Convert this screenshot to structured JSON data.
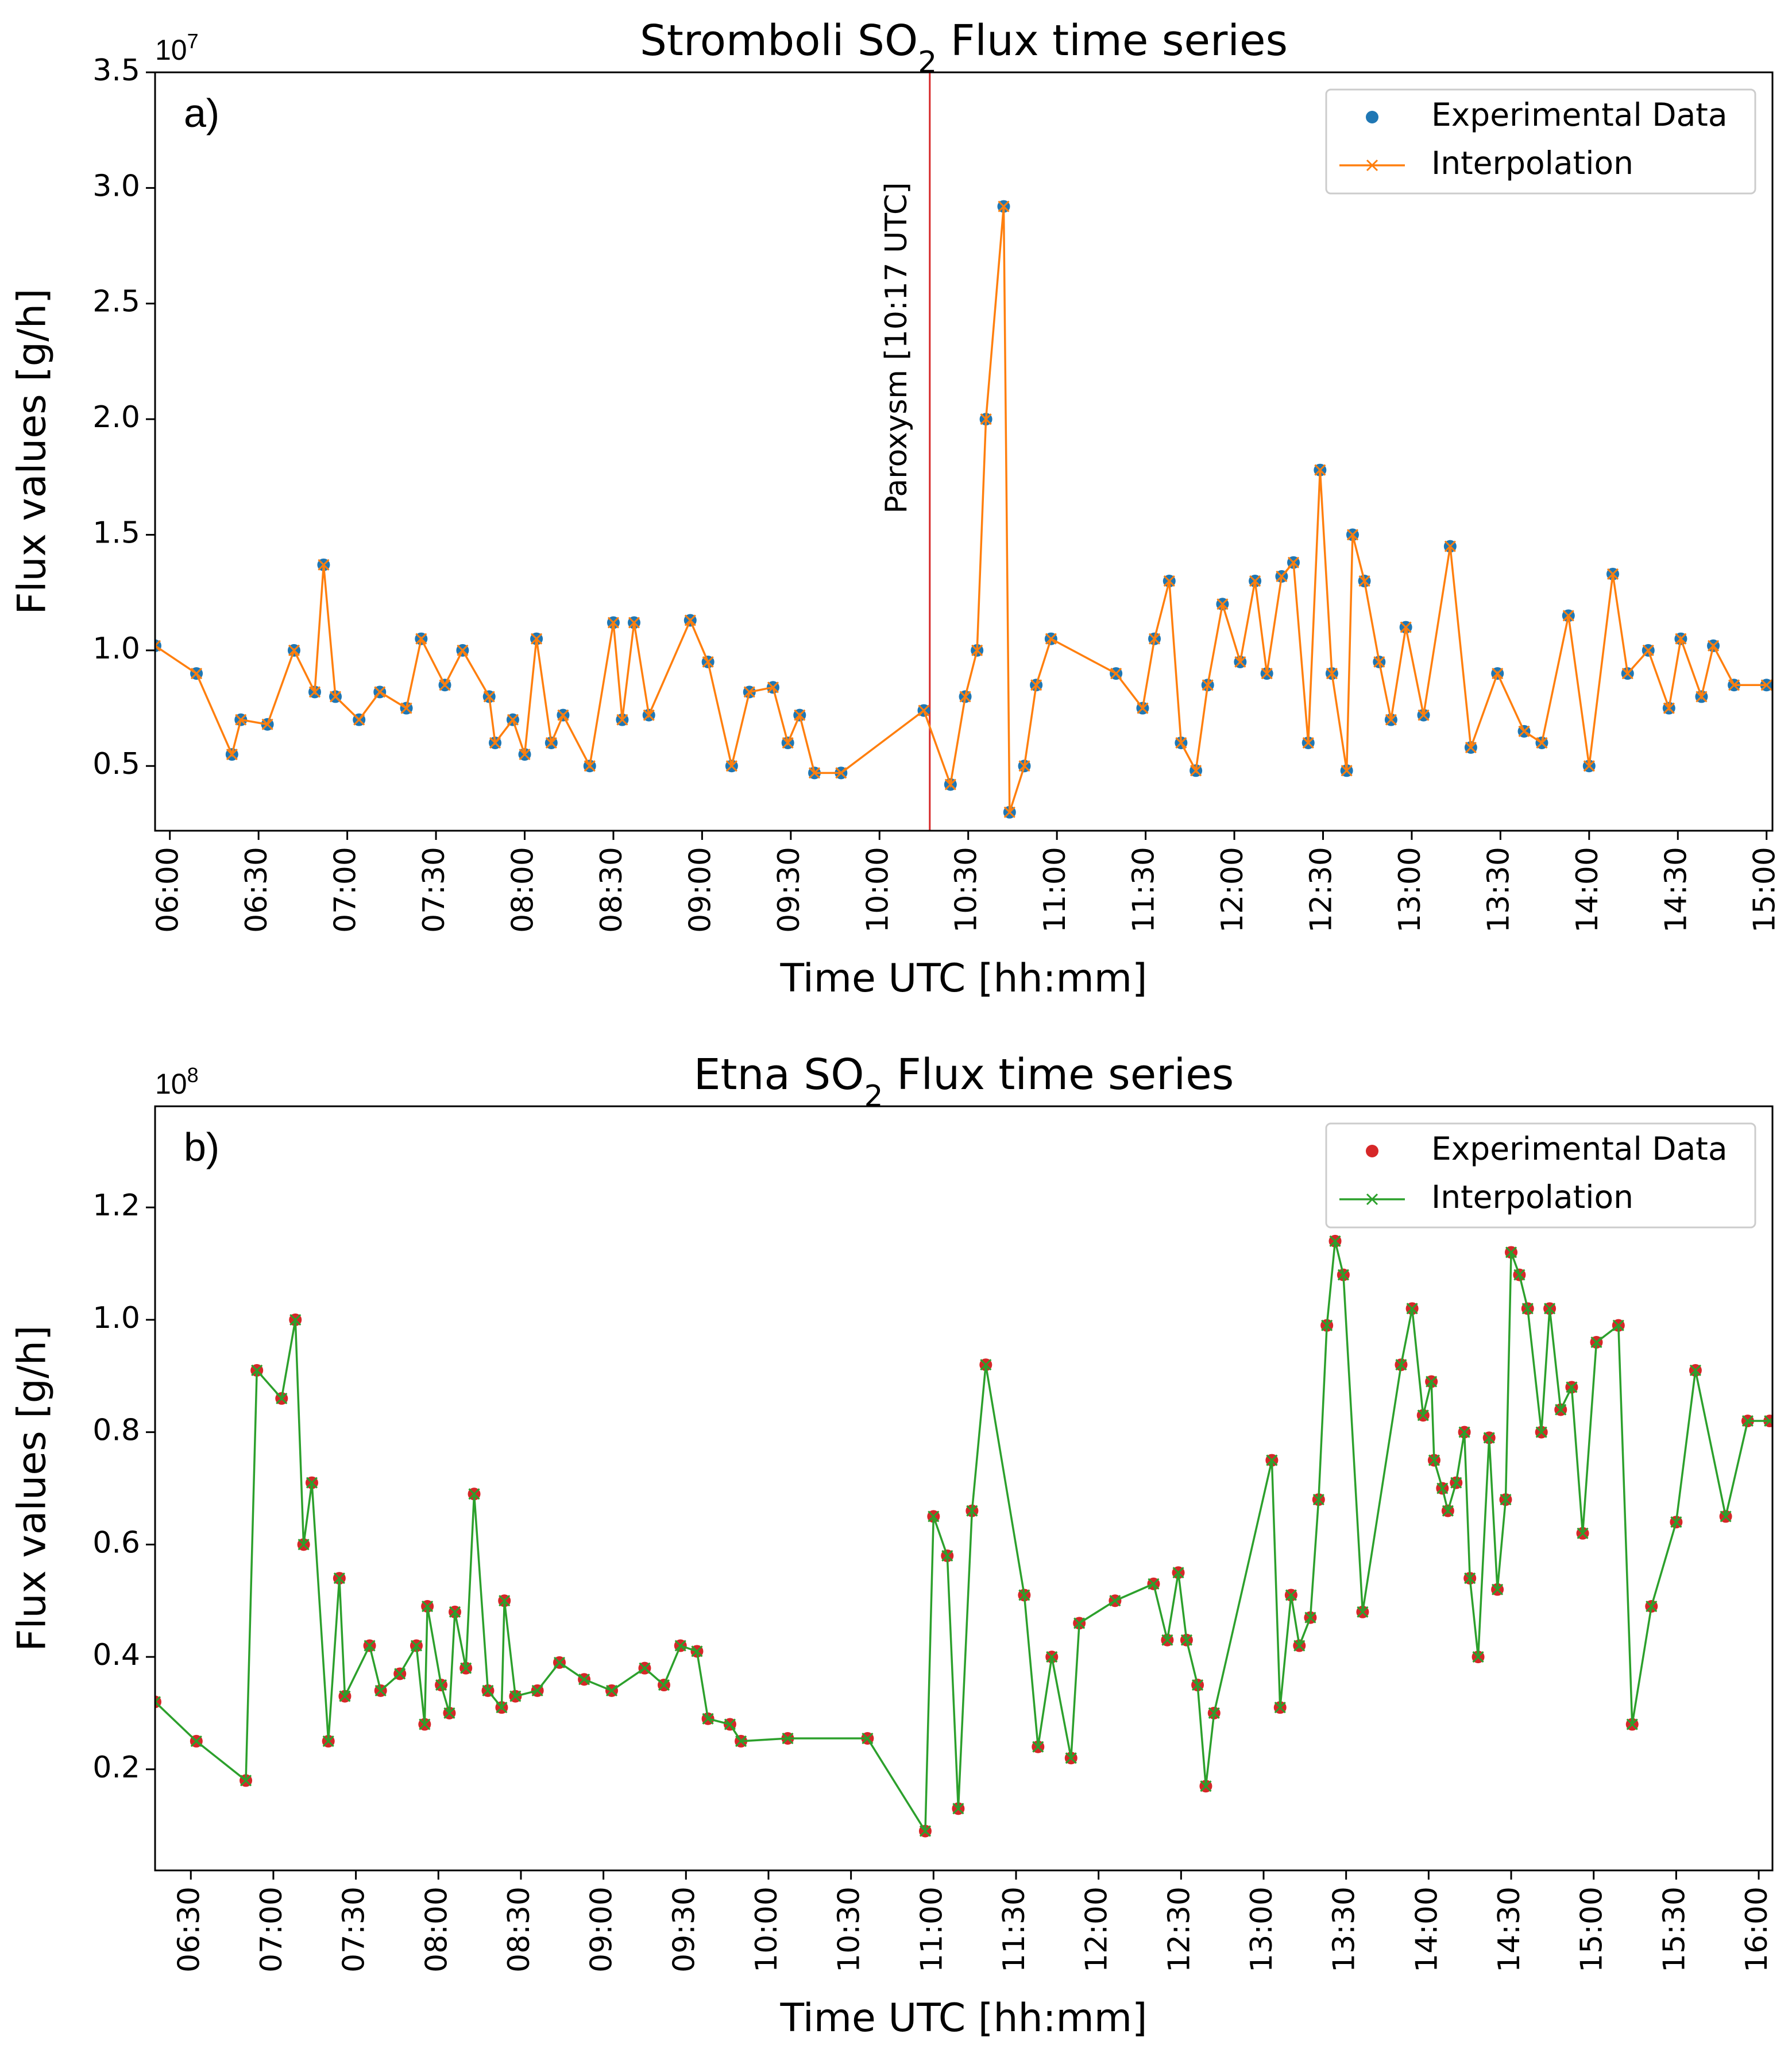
{
  "chart_data": [
    {
      "type": "line",
      "title": {
        "text": "Stromboli SO",
        "sub": "2",
        "rest": " Flux time series"
      },
      "panel_label": "a)",
      "offset_text": {
        "base": "10",
        "exp": "7"
      },
      "xlabel": "Time UTC [hh:mm]",
      "ylabel": "Flux values [g/h]",
      "xlim": [
        355,
        902
      ],
      "ylim": [
        0.22,
        3.5
      ],
      "xticks": [
        {
          "value": 360,
          "label": "06:00"
        },
        {
          "value": 390,
          "label": "06:30"
        },
        {
          "value": 420,
          "label": "07:00"
        },
        {
          "value": 450,
          "label": "07:30"
        },
        {
          "value": 480,
          "label": "08:00"
        },
        {
          "value": 510,
          "label": "08:30"
        },
        {
          "value": 540,
          "label": "09:00"
        },
        {
          "value": 570,
          "label": "09:30"
        },
        {
          "value": 600,
          "label": "10:00"
        },
        {
          "value": 630,
          "label": "10:30"
        },
        {
          "value": 660,
          "label": "11:00"
        },
        {
          "value": 690,
          "label": "11:30"
        },
        {
          "value": 720,
          "label": "12:00"
        },
        {
          "value": 750,
          "label": "12:30"
        },
        {
          "value": 780,
          "label": "13:00"
        },
        {
          "value": 810,
          "label": "13:30"
        },
        {
          "value": 840,
          "label": "14:00"
        },
        {
          "value": 870,
          "label": "14:30"
        },
        {
          "value": 900,
          "label": "15:00"
        }
      ],
      "yticks": [
        0.5,
        {
          "value": 1,
          "label": "1.0"
        },
        1.5,
        {
          "value": 2,
          "label": "2.0"
        },
        2.5,
        {
          "value": 3,
          "label": "3.0"
        },
        3.5
      ],
      "legend": "upper right",
      "vline": {
        "x": 617,
        "color": "#d62728",
        "label": "Paroxysm [10:17 UTC]"
      },
      "series": [
        {
          "name": "Experimental Data",
          "color": "#1f77b4",
          "marker": "o",
          "x": [
            355,
            369,
            381,
            384,
            393,
            402,
            409,
            412,
            416,
            424,
            431,
            440,
            445,
            453,
            459,
            468,
            470,
            476,
            480,
            484,
            489,
            493,
            502,
            510,
            513,
            517,
            522,
            536,
            542,
            550,
            556,
            564,
            569,
            573,
            578,
            587,
            615,
            624,
            629,
            633,
            636,
            642,
            644,
            649,
            653,
            658,
            680,
            689,
            693,
            698,
            702,
            707,
            711,
            716,
            722,
            727,
            731,
            736,
            740,
            745,
            749,
            753,
            758,
            760,
            764,
            769,
            773,
            778,
            784,
            793,
            800,
            809,
            818,
            824,
            833,
            840,
            848,
            853,
            860,
            867,
            871,
            878,
            882,
            889,
            900
          ],
          "values": [
            1.02,
            0.9,
            0.55,
            0.7,
            0.68,
            1.0,
            0.82,
            1.37,
            0.8,
            0.7,
            0.82,
            0.75,
            1.05,
            0.85,
            1.0,
            0.8,
            0.6,
            0.7,
            0.55,
            1.05,
            0.6,
            0.72,
            0.5,
            1.12,
            0.7,
            1.12,
            0.72,
            1.13,
            0.95,
            0.5,
            0.82,
            0.84,
            0.6,
            0.72,
            0.47,
            0.47,
            0.74,
            0.42,
            0.8,
            1.0,
            2.0,
            2.92,
            0.3,
            0.5,
            0.85,
            1.05,
            0.9,
            0.75,
            1.05,
            1.3,
            0.6,
            0.48,
            0.85,
            1.2,
            0.95,
            1.3,
            0.9,
            1.32,
            1.38,
            0.6,
            1.78,
            0.9,
            0.48,
            1.5,
            1.3,
            0.95,
            0.7,
            1.1,
            0.72,
            1.45,
            0.58,
            0.9,
            0.65,
            0.6,
            1.15,
            0.5,
            1.33,
            0.9,
            1.0,
            0.75,
            1.05,
            0.8,
            1.02,
            0.85,
            0.85
          ]
        },
        {
          "name": "Interpolation",
          "color": "#ff7f0e",
          "marker": "x",
          "line": true,
          "x": [
            355,
            369,
            381,
            384,
            393,
            402,
            409,
            412,
            416,
            424,
            431,
            440,
            445,
            453,
            459,
            468,
            470,
            476,
            480,
            484,
            489,
            493,
            502,
            510,
            513,
            517,
            522,
            536,
            542,
            550,
            556,
            564,
            569,
            573,
            578,
            587,
            615,
            624,
            629,
            633,
            636,
            642,
            644,
            649,
            653,
            658,
            680,
            689,
            693,
            698,
            702,
            707,
            711,
            716,
            722,
            727,
            731,
            736,
            740,
            745,
            749,
            753,
            758,
            760,
            764,
            769,
            773,
            778,
            784,
            793,
            800,
            809,
            818,
            824,
            833,
            840,
            848,
            853,
            860,
            867,
            871,
            878,
            882,
            889,
            900
          ],
          "values": [
            1.02,
            0.9,
            0.55,
            0.7,
            0.68,
            1.0,
            0.82,
            1.37,
            0.8,
            0.7,
            0.82,
            0.75,
            1.05,
            0.85,
            1.0,
            0.8,
            0.6,
            0.7,
            0.55,
            1.05,
            0.6,
            0.72,
            0.5,
            1.12,
            0.7,
            1.12,
            0.72,
            1.13,
            0.95,
            0.5,
            0.82,
            0.84,
            0.6,
            0.72,
            0.47,
            0.47,
            0.74,
            0.42,
            0.8,
            1.0,
            2.0,
            2.92,
            0.3,
            0.5,
            0.85,
            1.05,
            0.9,
            0.75,
            1.05,
            1.3,
            0.6,
            0.48,
            0.85,
            1.2,
            0.95,
            1.3,
            0.9,
            1.32,
            1.38,
            0.6,
            1.78,
            0.9,
            0.48,
            1.5,
            1.3,
            0.95,
            0.7,
            1.1,
            0.72,
            1.45,
            0.58,
            0.9,
            0.65,
            0.6,
            1.15,
            0.5,
            1.33,
            0.9,
            1.0,
            0.75,
            1.05,
            0.8,
            1.02,
            0.85,
            0.85
          ]
        }
      ]
    },
    {
      "type": "line",
      "title": {
        "text": "Etna SO",
        "sub": "2",
        "rest": " Flux time series"
      },
      "panel_label": "b)",
      "offset_text": {
        "base": "10",
        "exp": "8"
      },
      "xlabel": "Time UTC [hh:mm]",
      "ylabel": "Flux values [g/h]",
      "xlim": [
        377,
        965
      ],
      "ylim": [
        0.02,
        1.38
      ],
      "xticks": [
        {
          "value": 390,
          "label": "06:30"
        },
        {
          "value": 420,
          "label": "07:00"
        },
        {
          "value": 450,
          "label": "07:30"
        },
        {
          "value": 480,
          "label": "08:00"
        },
        {
          "value": 510,
          "label": "08:30"
        },
        {
          "value": 540,
          "label": "09:00"
        },
        {
          "value": 570,
          "label": "09:30"
        },
        {
          "value": 600,
          "label": "10:00"
        },
        {
          "value": 630,
          "label": "10:30"
        },
        {
          "value": 660,
          "label": "11:00"
        },
        {
          "value": 690,
          "label": "11:30"
        },
        {
          "value": 720,
          "label": "12:00"
        },
        {
          "value": 750,
          "label": "12:30"
        },
        {
          "value": 780,
          "label": "13:00"
        },
        {
          "value": 810,
          "label": "13:30"
        },
        {
          "value": 840,
          "label": "14:00"
        },
        {
          "value": 870,
          "label": "14:30"
        },
        {
          "value": 900,
          "label": "15:00"
        },
        {
          "value": 930,
          "label": "15:30"
        },
        {
          "value": 960,
          "label": "16:00"
        }
      ],
      "yticks": [
        0.2,
        0.4,
        0.6,
        0.8,
        {
          "value": 1,
          "label": "1.0"
        },
        1.2
      ],
      "legend": "upper right",
      "series": [
        {
          "name": "Experimental Data",
          "color": "#d62728",
          "marker": "o",
          "x": [
            377,
            392,
            410,
            414,
            423,
            428,
            431,
            434,
            440,
            444,
            446,
            455,
            459,
            466,
            472,
            475,
            476,
            481,
            484,
            486,
            490,
            493,
            498,
            503,
            504,
            508,
            516,
            524,
            533,
            543,
            555,
            562,
            568,
            574,
            578,
            586,
            590,
            607,
            636,
            657,
            660,
            665,
            669,
            674,
            679,
            693,
            698,
            703,
            710,
            713,
            726,
            740,
            745,
            749,
            752,
            756,
            759,
            762,
            783,
            786,
            790,
            793,
            797,
            800,
            803,
            806,
            809,
            816,
            830,
            834,
            838,
            841,
            842,
            845,
            847,
            850,
            853,
            855,
            858,
            862,
            865,
            868,
            870,
            873,
            876,
            881,
            884,
            888,
            892,
            896,
            901,
            909,
            914,
            921,
            930,
            937,
            948,
            956,
            964
          ],
          "values": [
            0.32,
            0.25,
            0.18,
            0.91,
            0.86,
            1.0,
            0.6,
            0.71,
            0.25,
            0.54,
            0.33,
            0.42,
            0.34,
            0.37,
            0.42,
            0.28,
            0.49,
            0.35,
            0.3,
            0.48,
            0.38,
            0.69,
            0.34,
            0.31,
            0.5,
            0.33,
            0.34,
            0.39,
            0.36,
            0.34,
            0.38,
            0.35,
            0.42,
            0.41,
            0.29,
            0.28,
            0.25,
            0.255,
            0.255,
            0.09,
            0.65,
            0.58,
            0.13,
            0.66,
            0.92,
            0.51,
            0.24,
            0.4,
            0.22,
            0.46,
            0.5,
            0.53,
            0.43,
            0.55,
            0.43,
            0.35,
            0.17,
            0.3,
            0.75,
            0.31,
            0.51,
            0.42,
            0.47,
            0.68,
            0.99,
            1.14,
            1.08,
            0.48,
            0.92,
            1.02,
            0.83,
            0.89,
            0.75,
            0.7,
            0.66,
            0.71,
            0.8,
            0.54,
            0.4,
            0.79,
            0.52,
            0.68,
            1.12,
            1.08,
            1.02,
            0.8,
            1.02,
            0.84,
            0.88,
            0.62,
            0.96,
            0.99,
            0.28,
            0.49,
            0.64,
            0.91,
            0.65,
            0.82,
            0.82
          ]
        },
        {
          "name": "Interpolation",
          "color": "#2ca02c",
          "marker": "x",
          "line": true,
          "x": [
            377,
            392,
            410,
            414,
            423,
            428,
            431,
            434,
            440,
            444,
            446,
            455,
            459,
            466,
            472,
            475,
            476,
            481,
            484,
            486,
            490,
            493,
            498,
            503,
            504,
            508,
            516,
            524,
            533,
            543,
            555,
            562,
            568,
            574,
            578,
            586,
            590,
            607,
            636,
            657,
            660,
            665,
            669,
            674,
            679,
            693,
            698,
            703,
            710,
            713,
            726,
            740,
            745,
            749,
            752,
            756,
            759,
            762,
            783,
            786,
            790,
            793,
            797,
            800,
            803,
            806,
            809,
            816,
            830,
            834,
            838,
            841,
            842,
            845,
            847,
            850,
            853,
            855,
            858,
            862,
            865,
            868,
            870,
            873,
            876,
            881,
            884,
            888,
            892,
            896,
            901,
            909,
            914,
            921,
            930,
            937,
            948,
            956,
            964
          ],
          "values": [
            0.32,
            0.25,
            0.18,
            0.91,
            0.86,
            1.0,
            0.6,
            0.71,
            0.25,
            0.54,
            0.33,
            0.42,
            0.34,
            0.37,
            0.42,
            0.28,
            0.49,
            0.35,
            0.3,
            0.48,
            0.38,
            0.69,
            0.34,
            0.31,
            0.5,
            0.33,
            0.34,
            0.39,
            0.36,
            0.34,
            0.38,
            0.35,
            0.42,
            0.41,
            0.29,
            0.28,
            0.25,
            0.255,
            0.255,
            0.09,
            0.65,
            0.58,
            0.13,
            0.66,
            0.92,
            0.51,
            0.24,
            0.4,
            0.22,
            0.46,
            0.5,
            0.53,
            0.43,
            0.55,
            0.43,
            0.35,
            0.17,
            0.3,
            0.75,
            0.31,
            0.51,
            0.42,
            0.47,
            0.68,
            0.99,
            1.14,
            1.08,
            0.48,
            0.92,
            1.02,
            0.83,
            0.89,
            0.75,
            0.7,
            0.66,
            0.71,
            0.8,
            0.54,
            0.4,
            0.79,
            0.52,
            0.68,
            1.12,
            1.08,
            1.02,
            0.8,
            1.02,
            0.84,
            0.88,
            0.62,
            0.96,
            0.99,
            0.28,
            0.49,
            0.64,
            0.91,
            0.65,
            0.82,
            0.82
          ]
        }
      ]
    }
  ]
}
